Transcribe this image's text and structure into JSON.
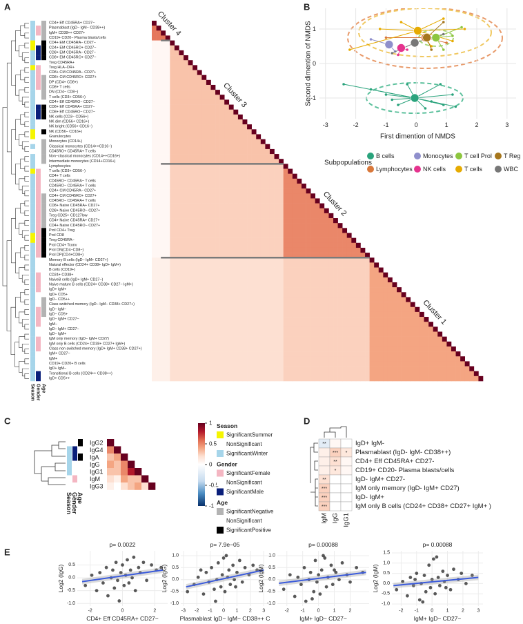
{
  "panel_labels": [
    "A",
    "B",
    "C",
    "D",
    "E"
  ],
  "chart_data": [
    {
      "type": "heatmap",
      "rows": [
        "CD4+ Eff CD45RA+ CD27−",
        "Plasmablast (IgD− IgM− CD38++)",
        "IgM+ CD38++ CD27+",
        "CD19+ CD20− Plasma blasts/cells",
        "CD4+ EM CD45RA− CD27−",
        "CD4+ EM CD45RO+ CD27−",
        "CD8+ EM CD45RA− CD27−",
        "CD8+ EM CD45RO+ CD27−",
        "Treg CD45RA+",
        "Treg HLA−DR+",
        "CD8+ CM CD45RA− CD27+",
        "CD8+ CM CD45RO+ CD27+",
        "DP (CD4+ CD8+)",
        "CD8+ T cells",
        "DN (CD4− CD8−)",
        "T cells (CD3+ CD56+)",
        "CD4+ Eff CD45RO− CD27−",
        "CD8+ Eff CD45RA+ CD27−",
        "CD8+ Eff CD45RO− CD27−",
        "NK cells (CD3− CD56+)",
        "NK dim (CD56+ CD16+)",
        "NK bright (CD56+ CD16−)",
        "NK (CD56− CD16+)",
        "Granulocytes",
        "Monocytes (CD14+)",
        "Classical monocytes (CD14++CD16−)",
        "CD45RO+ CD45RA+ T cells",
        "Non−classical monocytes (CD14++CD16+)",
        "Intermediate monocytes (CD14+CD16+)",
        "Lymphocytes",
        "T cells (CD3+ CD56−)",
        "CD4+ T cells",
        "CD45RO− CD45RA− T cells",
        "CD45RO− CD45RA+ T cells",
        "CD4+ CM CD45RA− CD27+",
        "CD4+ CM CD45RO+ CD27+",
        "CD45RO− CD45RA+ T cells",
        "CD8+ Naive CD45RA+ CD27+",
        "CD8+ Naive CD45RO− CD27+",
        "Treg CD25+ CD127low",
        "CD4+ Naive CD45RA+ CD27+",
        "CD4+ Naive CD45RO− CD27+",
        "Prol CD4+ Treg",
        "Prol CD8",
        "Treg CD45RA−",
        "Prol CD4+ Tconv",
        "Prol DN(CD4−CD8−)",
        "Prol DP(CD4+CD8+)",
        "Memory B cells (IgD− IgM+ CD27+)",
        "Natural effector (CD24+ CD38+ IgD+ IgM+)",
        "B cells (CD19+)",
        "CD24+ CD38+",
        "NaiveB cells (IgD+ IgM+ CD27−)",
        "Naive mature B cells (CD24+ CD38+ CD27− IgM+)",
        "IgD+ IgM+",
        "IgD+ CD5+",
        "IgD− CD5++",
        "Class switched memory (IgD− IgM− CD38+ CD27+)",
        "IgD− IgM−",
        "IgD− CD5+",
        "IgD− IgM+ CD27−",
        "IgM−",
        "IgD− IgM+ CD27−",
        "IgD− IgM+",
        "IgM only memory (IgD− IgM+ CD27)",
        "IgM only B cells (CD24+ CD38+ CD27+ IgM+)",
        "Class non switched memory (IgD+ IgM+ CD38+ CD27+)",
        "IgM+ CD27−",
        "IgM+",
        "CD19+ CD20+ B cells",
        "IgD+ IgM−",
        "Transitional B cells (CD24++ CD38++)",
        "IgD+ CD5++"
      ],
      "cluster_names": [
        "Cluster 4",
        "Cluster 3",
        "Cluster 2",
        "Cluster 1"
      ],
      "cluster_sizes": [
        4,
        25,
        19,
        25
      ],
      "diagonal": 1,
      "block_values": [
        [
          0.55
        ],
        [
          0.05,
          0.3
        ],
        [
          0.05,
          0.25,
          0.5
        ],
        [
          0.1,
          0.2,
          0.25,
          0.4
        ]
      ]
    },
    {
      "type": "scatter",
      "xlabel": "First dimention of NMDS",
      "ylabel": "Second dimention of NMDS",
      "xlim": [
        -3.2,
        3.3
      ],
      "xticks": [
        -3,
        -2,
        -1,
        0,
        1,
        2,
        3
      ],
      "ylim": [
        -1.6,
        1.6
      ],
      "yticks": [
        -1,
        0,
        1
      ],
      "grid": true,
      "legend": {
        "title": "Subpopulations",
        "position": "bottom"
      },
      "series": [
        {
          "name": "B cells",
          "color": "#2aa37c",
          "center_x": -0.05,
          "center_y": -1.0,
          "x": [
            -2.4,
            -1.5,
            -1.0,
            -0.6,
            0.3,
            0.8,
            1.2,
            0.5,
            -0.3,
            0.9,
            -0.8,
            1.3
          ],
          "values": [
            -0.6,
            -0.75,
            -0.9,
            -1.2,
            -1.3,
            -0.6,
            -0.9,
            -1.1,
            -0.6,
            -1.2,
            -1.05,
            -1.25
          ]
        },
        {
          "name": "Lymphocytes",
          "color": "#d9783a",
          "center_x": 0.3,
          "center_y": 0.75,
          "x": [
            -1.0,
            1.0
          ],
          "values": [
            0.75,
            0.6
          ]
        },
        {
          "name": "Monocytes",
          "color": "#8f8fcc",
          "center_x": -0.9,
          "center_y": 0.55,
          "x": [
            -1.5,
            -0.7
          ],
          "values": [
            0.7,
            0.35
          ]
        },
        {
          "name": "NK cells",
          "color": "#e5338e",
          "center_x": -0.5,
          "center_y": 0.45,
          "x": [
            -0.6,
            -0.3
          ],
          "values": [
            0.25,
            0.4
          ]
        },
        {
          "name": "T cell Prol",
          "color": "#8dc63f",
          "center_x": 0.65,
          "center_y": 0.75,
          "x": [
            1.2,
            0.9,
            1.5
          ],
          "values": [
            0.8,
            0.4,
            1.05
          ]
        },
        {
          "name": "T cells",
          "color": "#e6ab02",
          "center_x": 0.05,
          "center_y": 0.95,
          "x": [
            -2.2,
            -1.2,
            0.9,
            1.6,
            0.5,
            -0.5,
            1.2
          ],
          "values": [
            0.4,
            1.0,
            1.3,
            1.0,
            0.5,
            1.2,
            0.65
          ]
        },
        {
          "name": "T Reg",
          "color": "#a6761d",
          "center_x": 0.35,
          "center_y": 0.75,
          "x": [
            0.9,
            0.5
          ],
          "values": [
            1.2,
            0.4
          ]
        },
        {
          "name": "WBC",
          "color": "#777777",
          "center_x": -0.05,
          "center_y": 0.6,
          "x": [
            -0.8,
            0.9
          ],
          "values": [
            0.3,
            0.85
          ]
        }
      ]
    },
    {
      "type": "heatmap",
      "rows": [
        "IgG2",
        "IgG4",
        "IgA",
        "IgG",
        "IgG1",
        "IgM",
        "IgG3"
      ],
      "values": [
        [
          1
        ],
        [
          0.5,
          1
        ],
        [
          0.3,
          0.4,
          1
        ],
        [
          0.4,
          0.3,
          0.5,
          1
        ],
        [
          0.3,
          0.3,
          0.5,
          0.8,
          1
        ],
        [
          0.2,
          0.1,
          0.4,
          0.3,
          0.3,
          1
        ],
        [
          0.1,
          0.0,
          0.2,
          0.3,
          0.4,
          0.2,
          1
        ]
      ],
      "colorbar": {
        "ylim": [
          -1,
          1
        ],
        "yticks": [
          1,
          0.5,
          0,
          -0.5,
          -1
        ]
      },
      "annotation_legend": [
        {
          "title": "Season",
          "items": [
            {
              "label": "SignificantSummer",
              "color": "#f5f500"
            },
            {
              "label": "NonSignificant",
              "color": "#ffffff"
            },
            {
              "label": "SignificantWinter",
              "color": "#a6d5ea"
            }
          ]
        },
        {
          "title": "Gender",
          "items": [
            {
              "label": "SignificantFemale",
              "color": "#f4b6c2"
            },
            {
              "label": "NonSignificant",
              "color": "#ffffff"
            },
            {
              "label": "SignificantMale",
              "color": "#0a1f7a"
            }
          ]
        },
        {
          "title": "Age",
          "items": [
            {
              "label": "SignificantNegative",
              "color": "#b3b3b3"
            },
            {
              "label": "NonSignificant",
              "color": "#ffffff"
            },
            {
              "label": "SignificantPositive",
              "color": "#000000"
            }
          ]
        }
      ]
    },
    {
      "type": "heatmap",
      "rows": [
        "IgD+ IgM-",
        "Plasmablast (IgD- IgM- CD38++)",
        "CD4+ Eff CD45RA+ CD27-",
        "CD19+ CD20- Plasma blasts/cells",
        "IgD- IgM+ CD27-",
        "IgM only memory (IgD- IgM+ CD27)",
        "IgD- IgM+",
        "IgM only B cells (CD24+ CD38+ CD27+ IgM+ )"
      ],
      "columns": [
        "IgM",
        "IgG",
        "IgG1"
      ],
      "values": [
        [
          -0.2,
          0.05,
          0
        ],
        [
          0.1,
          0.25,
          0.15
        ],
        [
          0.1,
          0.2,
          0.05
        ],
        [
          0.1,
          0.15,
          0.05
        ],
        [
          0.2,
          0,
          0
        ],
        [
          0.25,
          0,
          0
        ],
        [
          0.25,
          0,
          0
        ],
        [
          0.25,
          0,
          0
        ]
      ],
      "stars": [
        [
          "**",
          null,
          null
        ],
        [
          null,
          "***",
          "*"
        ],
        [
          null,
          "**",
          null
        ],
        [
          null,
          "*",
          null
        ],
        [
          "**",
          null,
          null
        ],
        [
          "***",
          null,
          null
        ],
        [
          "***",
          null,
          null
        ],
        [
          "***",
          null,
          null
        ]
      ]
    },
    {
      "type": "scatter",
      "title": "p= 0.0022",
      "xlabel": "CD4+ Eff CD45RA+ CD27−",
      "ylabel": "Log2 (IgG)",
      "xlim": [
        -2.8,
        2.8
      ],
      "xticks": [
        -2,
        0,
        2
      ],
      "ylim": [
        -1.1,
        1.05
      ],
      "yticks": [
        {
          "value": -1,
          "label": "-1.0"
        },
        {
          "value": -0.5,
          "label": "-0.5"
        },
        {
          "value": 0,
          "label": "0.0"
        },
        {
          "value": 0.5,
          "label": "0.5"
        }
      ],
      "grid": true,
      "series": [
        {
          "color": "#222222",
          "x": [
            -2.3,
            -1.9,
            -1.6,
            -1.4,
            -1.2,
            -1.0,
            -0.9,
            -0.7,
            -0.6,
            -0.5,
            -0.4,
            -0.3,
            -0.2,
            -0.1,
            0,
            0.1,
            0.2,
            0.3,
            0.4,
            0.5,
            0.6,
            0.7,
            0.8,
            1.0,
            1.1,
            1.3,
            1.5,
            1.8,
            2.1,
            2.4
          ],
          "values": [
            -0.3,
            0.1,
            -0.5,
            0.2,
            -0.2,
            0.4,
            -0.7,
            0.0,
            0.3,
            -0.4,
            0.6,
            -0.1,
            -0.9,
            0.2,
            0.5,
            -0.3,
            0.1,
            0.7,
            -0.2,
            0.3,
            0.0,
            0.8,
            -0.5,
            0.4,
            0.2,
            0.6,
            -0.1,
            0.5,
            0.3,
            0.4
          ]
        }
      ],
      "fit": {
        "color": "#3b5bdb",
        "x": [
          -2.5,
          2.5
        ],
        "values": [
          -0.15,
          0.3
        ]
      }
    },
    {
      "type": "scatter",
      "title": "p= 7.9e−05",
      "xlabel": "Plasmablast IgD− IgM− CD38++ C",
      "ylabel": "Log2 (IgG)",
      "xlim": [
        -3.2,
        3.4
      ],
      "xticks": [
        -3,
        -2,
        -1,
        0,
        1,
        2,
        3
      ],
      "ylim": [
        -1.1,
        1.2
      ],
      "yticks": [
        {
          "value": -1,
          "label": "-1.0"
        },
        {
          "value": -0.5,
          "label": "-0.5"
        },
        {
          "value": 0,
          "label": "0.0"
        },
        {
          "value": 0.5,
          "label": "0.5"
        },
        {
          "value": 1,
          "label": "1.0"
        }
      ],
      "grid": true,
      "series": [
        {
          "color": "#222222",
          "x": [
            -2.7,
            -2.2,
            -1.9,
            -1.5,
            -1.3,
            -1.1,
            -0.9,
            -0.7,
            -0.5,
            -0.4,
            -0.2,
            -0.1,
            0,
            0.1,
            0.3,
            0.4,
            0.5,
            0.7,
            0.8,
            1.0,
            1.2,
            1.4,
            1.6,
            1.9,
            2.2,
            2.5,
            -0.6,
            0.2,
            0.9,
            -1.7
          ],
          "values": [
            -0.5,
            -0.2,
            0.1,
            -0.6,
            0.3,
            -0.1,
            0.5,
            -0.4,
            0.0,
            0.7,
            -0.3,
            0.2,
            0.9,
            -0.5,
            0.1,
            0.4,
            -0.2,
            0.6,
            0.0,
            0.3,
            0.8,
            -0.1,
            0.5,
            0.2,
            0.6,
            0.4,
            -0.9,
            1.0,
            -0.3,
            0.4
          ]
        }
      ],
      "fit": {
        "color": "#3b5bdb",
        "x": [
          -2.8,
          3.0
        ],
        "values": [
          -0.3,
          0.4
        ]
      }
    },
    {
      "type": "scatter",
      "title": "p= 0.00088",
      "xlabel": "IgM+ IgD− CD27−",
      "ylabel": "Log2 (IgM)",
      "xlim": [
        -2.6,
        3.2
      ],
      "xticks": [
        -2,
        -1,
        0,
        1,
        2
      ],
      "ylim": [
        -1.1,
        1.2
      ],
      "yticks": [
        {
          "value": -1,
          "label": "-1.0"
        },
        {
          "value": -0.5,
          "label": "-0.5"
        },
        {
          "value": 0,
          "label": "0.0"
        },
        {
          "value": 0.5,
          "label": "0.5"
        },
        {
          "value": 1,
          "label": "1.0"
        }
      ],
      "grid": true,
      "series": [
        {
          "color": "#222222",
          "x": [
            -2.2,
            -1.8,
            -1.5,
            -1.3,
            -1.1,
            -0.9,
            -0.8,
            -0.6,
            -0.5,
            -0.3,
            -0.2,
            -0.1,
            0,
            0.1,
            0.2,
            0.3,
            0.5,
            0.6,
            0.8,
            0.9,
            1.1,
            1.3,
            1.5,
            1.8,
            2.0,
            2.4,
            2.8,
            -0.4,
            0.4,
            1.0
          ],
          "values": [
            -0.4,
            0.2,
            -0.7,
            0.1,
            -0.2,
            0.5,
            -0.9,
            0.0,
            0.3,
            -0.5,
            0.8,
            -0.1,
            0.2,
            -0.6,
            0.4,
            1.0,
            -0.3,
            0.1,
            0.6,
            -0.2,
            0.3,
            0.0,
            0.7,
            0.2,
            -0.1,
            0.5,
            0.3,
            -0.8,
            0.9,
            0.4
          ]
        }
      ],
      "fit": {
        "color": "#3b5bdb",
        "x": [
          -2.5,
          3.0
        ],
        "values": [
          -0.15,
          0.3
        ]
      }
    },
    {
      "type": "scatter",
      "title": "p= 0.00088",
      "xlabel": "IgM+ IgD− CD27−",
      "ylabel": "Log2 (IgM)",
      "xlim": [
        -2.6,
        3.3
      ],
      "xticks": [
        -2,
        -1,
        0,
        1,
        2,
        3
      ],
      "ylim": [
        -1.1,
        1.6
      ],
      "yticks": [
        {
          "value": -1,
          "label": "-1.0"
        },
        {
          "value": -0.5,
          "label": "-0.5"
        },
        {
          "value": 0,
          "label": "0.0"
        },
        {
          "value": 0.5,
          "label": "0.5"
        },
        {
          "value": 1,
          "label": "1.0"
        },
        {
          "value": 1.5,
          "label": "1.5"
        }
      ],
      "grid": true,
      "series": [
        {
          "color": "#222222",
          "x": [
            -2.3,
            -1.9,
            -1.6,
            -1.4,
            -1.2,
            -1.0,
            -0.8,
            -0.7,
            -0.5,
            -0.4,
            -0.2,
            -0.1,
            0,
            0.1,
            0.2,
            0.4,
            0.5,
            0.7,
            0.8,
            1.0,
            1.2,
            1.4,
            1.7,
            1.9,
            2.2,
            2.6,
            -0.6,
            0.3,
            0.9,
            -1.1
          ],
          "values": [
            -0.3,
            0.1,
            -0.6,
            0.3,
            -0.1,
            0.5,
            -0.8,
            0.0,
            0.4,
            -0.4,
            0.9,
            -0.2,
            0.2,
            1.2,
            -0.5,
            0.3,
            -0.1,
            0.6,
            0.1,
            0.4,
            -0.3,
            0.7,
            0.2,
            0.5,
            0.0,
            0.4,
            -0.9,
            1.3,
            -0.2,
            0.2
          ]
        }
      ],
      "fit": {
        "color": "#3b5bdb",
        "x": [
          -2.5,
          3.0
        ],
        "values": [
          -0.1,
          0.3
        ]
      }
    }
  ]
}
